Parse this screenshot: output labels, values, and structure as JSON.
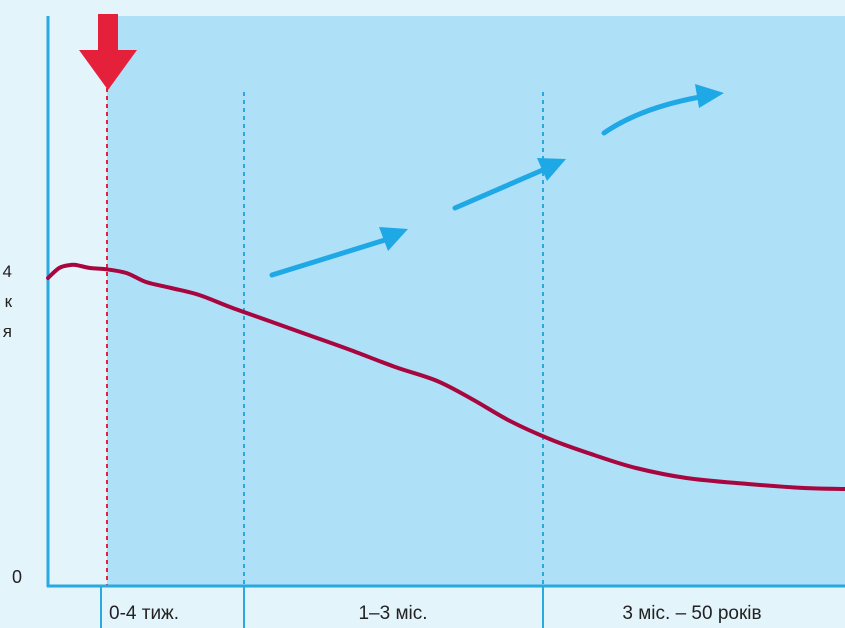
{
  "chart_data": {
    "type": "line",
    "y_tick_labels": [
      "0"
    ],
    "y_label_fragments": [
      "4",
      "к",
      "я"
    ],
    "x_segments": [
      "0-4 тиж.",
      "1–3 міс.",
      "3 міс. – 50 років"
    ],
    "series": [
      {
        "values": [
          [
            0,
            308
          ],
          [
            0.4,
            318
          ],
          [
            0.8,
            321
          ],
          [
            1.0,
            321
          ],
          [
            1.5,
            318
          ],
          [
            2.0,
            317
          ],
          [
            2.8,
            313
          ],
          [
            3.5,
            304
          ],
          [
            4.4,
            298
          ],
          [
            5.4,
            291
          ],
          [
            6.5,
            279
          ],
          [
            7.8,
            266
          ],
          [
            9.2,
            252
          ],
          [
            10.8,
            236
          ],
          [
            12.4,
            219
          ],
          [
            13.9,
            205
          ],
          [
            15.2,
            186
          ],
          [
            16.5,
            165
          ],
          [
            18.0,
            146
          ],
          [
            19.5,
            131
          ],
          [
            21.0,
            118
          ],
          [
            22.8,
            108
          ],
          [
            25.0,
            102
          ],
          [
            27.0,
            98
          ],
          [
            28.5,
            97
          ]
        ],
        "color": "#a8063f"
      }
    ],
    "event_marker": "red-down-arrow",
    "trend_arrows": 4,
    "colors": {
      "line": "#a8063f",
      "plot_fill": "#aee0f8",
      "outer_background": "#e4f4fb",
      "axis": "#29a9e0",
      "divider": "#29a9e0",
      "marker": "#e4203a",
      "trend_arrow": "#1fa8e6"
    },
    "grid": false
  }
}
